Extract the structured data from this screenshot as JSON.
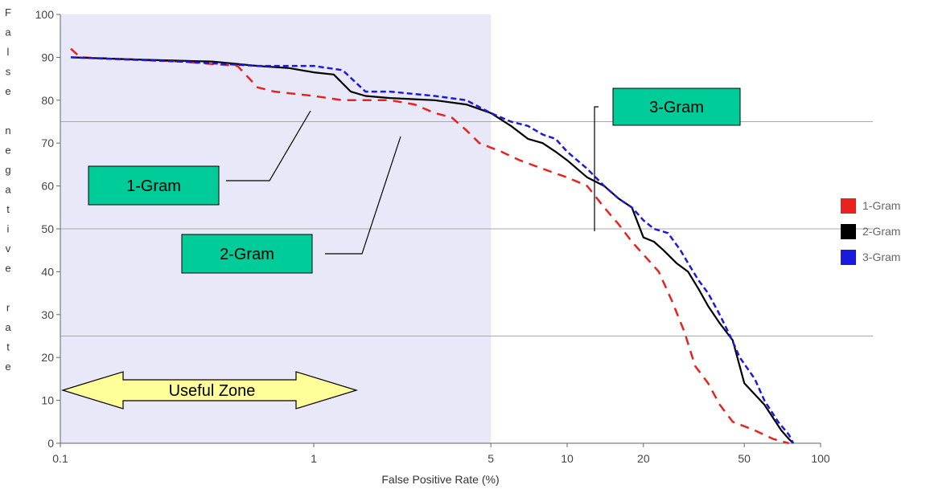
{
  "chart_data": {
    "type": "line",
    "xlabel": "False Positive Rate (%)",
    "ylabel": "False negative rate",
    "x_scale": "log",
    "xlim": [
      0.1,
      100
    ],
    "ylim": [
      0,
      100
    ],
    "x_ticks": [
      0.1,
      1,
      5,
      10,
      20,
      50,
      100
    ],
    "x_tick_labels": [
      "0.1",
      "1",
      "5",
      "10",
      "20",
      "50",
      "100"
    ],
    "y_ticks": [
      0,
      10,
      20,
      30,
      40,
      50,
      60,
      70,
      80,
      90,
      100
    ],
    "y_tick_labels": [
      "0",
      "10",
      "20",
      "30",
      "40",
      "50",
      "60",
      "70",
      "80",
      "90",
      "100"
    ],
    "reference_lines_y": [
      75,
      50,
      25
    ],
    "useful_zone": {
      "x_from": 0.1,
      "x_to": 5,
      "label": "Useful Zone",
      "color": "#e8e8f8"
    },
    "legend": {
      "position": "right"
    },
    "series": [
      {
        "name": "1-Gram",
        "color": "#e8231f",
        "style": "dashed",
        "points": [
          [
            0.11,
            92
          ],
          [
            0.12,
            90
          ],
          [
            0.3,
            89
          ],
          [
            0.5,
            88
          ],
          [
            0.6,
            83
          ],
          [
            0.7,
            82
          ],
          [
            1.0,
            81
          ],
          [
            1.3,
            80
          ],
          [
            2.0,
            80
          ],
          [
            2.5,
            79
          ],
          [
            3.0,
            77
          ],
          [
            3.5,
            76
          ],
          [
            4.0,
            73
          ],
          [
            4.5,
            70
          ],
          [
            5.5,
            68
          ],
          [
            6.5,
            66
          ],
          [
            8.0,
            64
          ],
          [
            10.0,
            62
          ],
          [
            12.0,
            60
          ],
          [
            14.0,
            55
          ],
          [
            16.0,
            51
          ],
          [
            18.0,
            47
          ],
          [
            20.0,
            44
          ],
          [
            23.0,
            40
          ],
          [
            26.0,
            33
          ],
          [
            29.0,
            26
          ],
          [
            32.0,
            18
          ],
          [
            36.0,
            14
          ],
          [
            40.0,
            9
          ],
          [
            45.0,
            5
          ],
          [
            55.0,
            3
          ],
          [
            65.0,
            1
          ],
          [
            75.0,
            0
          ]
        ]
      },
      {
        "name": "2-Gram",
        "color": "#000000",
        "style": "solid",
        "points": [
          [
            0.11,
            90
          ],
          [
            0.2,
            89.5
          ],
          [
            0.4,
            89
          ],
          [
            0.6,
            88
          ],
          [
            0.8,
            87.5
          ],
          [
            1.0,
            86.5
          ],
          [
            1.2,
            86
          ],
          [
            1.4,
            82
          ],
          [
            1.6,
            81
          ],
          [
            2.0,
            80.5
          ],
          [
            3.0,
            80
          ],
          [
            4.0,
            79
          ],
          [
            5.0,
            77
          ],
          [
            6.0,
            74
          ],
          [
            7.0,
            71
          ],
          [
            8.0,
            70
          ],
          [
            9.0,
            68
          ],
          [
            10.0,
            66
          ],
          [
            12.0,
            62
          ],
          [
            14.0,
            60
          ],
          [
            16.0,
            57
          ],
          [
            18.0,
            55
          ],
          [
            20.0,
            48
          ],
          [
            22.0,
            47
          ],
          [
            24.0,
            45
          ],
          [
            27.0,
            42
          ],
          [
            30.0,
            40
          ],
          [
            33.0,
            36
          ],
          [
            36.0,
            32
          ],
          [
            40.0,
            28
          ],
          [
            45.0,
            24
          ],
          [
            50.0,
            14
          ],
          [
            60.0,
            9
          ],
          [
            70.0,
            3
          ],
          [
            75.0,
            1
          ],
          [
            78.0,
            0
          ]
        ]
      },
      {
        "name": "3-Gram",
        "color": "#1a1adc",
        "style": "dashed",
        "points": [
          [
            0.11,
            90
          ],
          [
            0.3,
            89
          ],
          [
            0.6,
            88
          ],
          [
            1.0,
            88
          ],
          [
            1.3,
            87
          ],
          [
            1.6,
            82
          ],
          [
            2.0,
            82
          ],
          [
            3.0,
            81
          ],
          [
            4.0,
            80
          ],
          [
            5.0,
            77
          ],
          [
            6.0,
            75
          ],
          [
            7.0,
            74
          ],
          [
            8.0,
            72
          ],
          [
            9.0,
            71
          ],
          [
            10.0,
            68
          ],
          [
            12.0,
            64
          ],
          [
            14.0,
            60
          ],
          [
            16.0,
            57
          ],
          [
            18.0,
            55
          ],
          [
            20.0,
            52
          ],
          [
            22.0,
            50
          ],
          [
            25.0,
            49
          ],
          [
            28.0,
            45
          ],
          [
            30.0,
            42
          ],
          [
            33.0,
            38
          ],
          [
            36.0,
            35
          ],
          [
            40.0,
            30
          ],
          [
            44.0,
            25
          ],
          [
            48.0,
            20
          ],
          [
            55.0,
            15
          ],
          [
            60.0,
            10
          ],
          [
            68.0,
            5
          ],
          [
            75.0,
            2
          ],
          [
            78.0,
            0
          ]
        ]
      }
    ],
    "callouts": [
      {
        "label": "1-Gram",
        "color": "#00cc99"
      },
      {
        "label": "2-Gram",
        "color": "#00cc99"
      },
      {
        "label": "3-Gram",
        "color": "#00cc99"
      }
    ]
  }
}
